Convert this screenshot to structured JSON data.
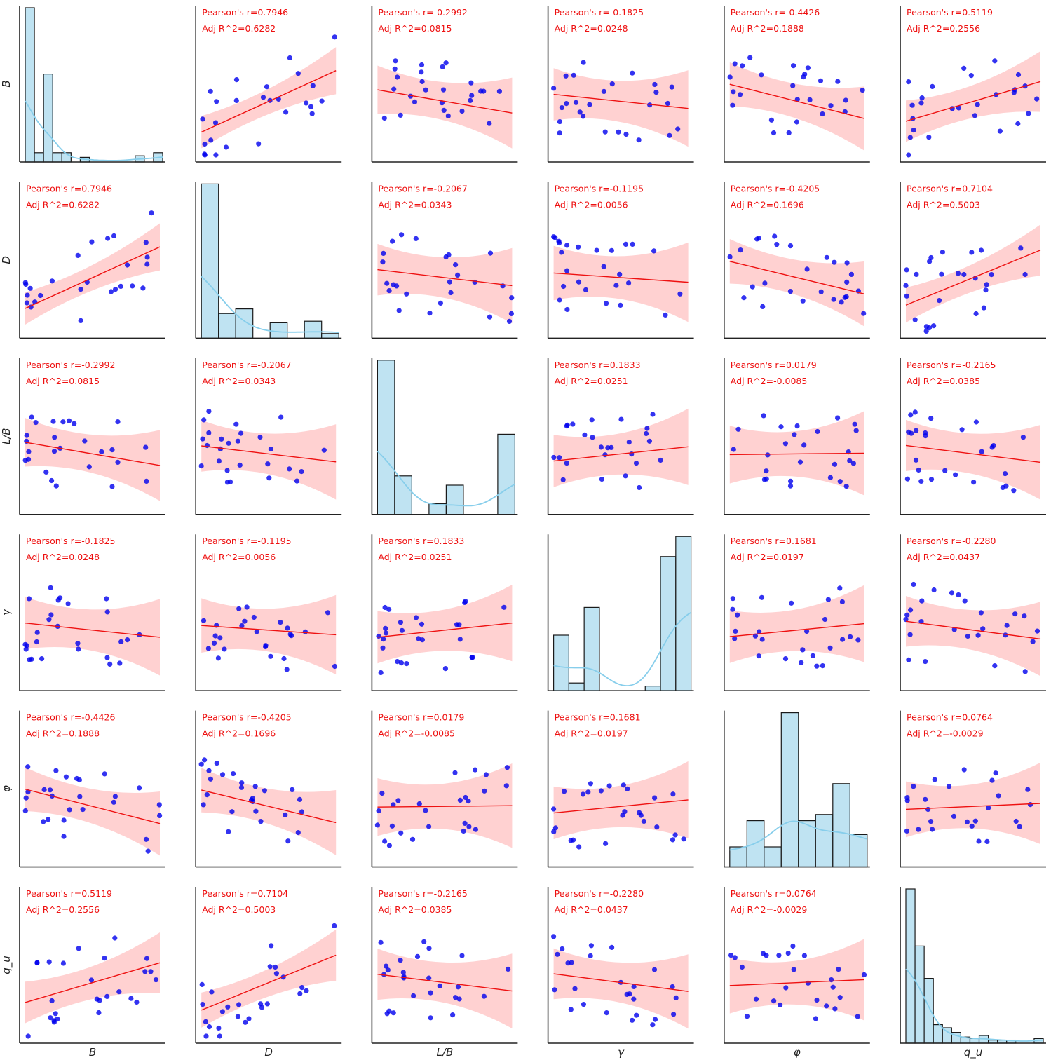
{
  "chart_data": {
    "type": "pairplot",
    "variables": [
      "B",
      "D",
      "L/B",
      "γ",
      "φ",
      "qu"
    ],
    "variable_labels": [
      "B",
      "D",
      "L/B",
      "γ",
      "φ",
      "q_u"
    ],
    "colors": {
      "scatter": "#0000ee",
      "fit_line": "#ee1111",
      "confidence_band": "#ffb3b3",
      "histogram_fill": "#bfe3f2",
      "histogram_edge": "#1a1a1a",
      "kde": "#87ceeb",
      "annotation": "#ee1111"
    },
    "pearson_label": "Pearson's r=",
    "adj_r2_label": "Adj R^2=",
    "pairs": [
      {
        "row": 0,
        "col": 1,
        "r": "0.7946",
        "adj_r2": "0.6282"
      },
      {
        "row": 0,
        "col": 2,
        "r": "-0.2992",
        "adj_r2": "0.0815"
      },
      {
        "row": 0,
        "col": 3,
        "r": "-0.1825",
        "adj_r2": "0.0248"
      },
      {
        "row": 0,
        "col": 4,
        "r": "-0.4426",
        "adj_r2": "0.1888"
      },
      {
        "row": 0,
        "col": 5,
        "r": "0.5119",
        "adj_r2": "0.2556"
      },
      {
        "row": 1,
        "col": 0,
        "r": "0.7946",
        "adj_r2": "0.6282"
      },
      {
        "row": 1,
        "col": 2,
        "r": "-0.2067",
        "adj_r2": "0.0343"
      },
      {
        "row": 1,
        "col": 3,
        "r": "-0.1195",
        "adj_r2": "0.0056"
      },
      {
        "row": 1,
        "col": 4,
        "r": "-0.4205",
        "adj_r2": "0.1696"
      },
      {
        "row": 1,
        "col": 5,
        "r": "0.7104",
        "adj_r2": "0.5003"
      },
      {
        "row": 2,
        "col": 0,
        "r": "-0.2992",
        "adj_r2": "0.0815"
      },
      {
        "row": 2,
        "col": 1,
        "r": "-0.2067",
        "adj_r2": "0.0343"
      },
      {
        "row": 2,
        "col": 3,
        "r": "0.1833",
        "adj_r2": "0.0251"
      },
      {
        "row": 2,
        "col": 4,
        "r": "0.0179",
        "adj_r2": "-0.0085"
      },
      {
        "row": 2,
        "col": 5,
        "r": "-0.2165",
        "adj_r2": "0.0385"
      },
      {
        "row": 3,
        "col": 0,
        "r": "-0.1825",
        "adj_r2": "0.0248"
      },
      {
        "row": 3,
        "col": 1,
        "r": "-0.1195",
        "adj_r2": "0.0056"
      },
      {
        "row": 3,
        "col": 2,
        "r": "0.1833",
        "adj_r2": "0.0251"
      },
      {
        "row": 3,
        "col": 4,
        "r": "0.1681",
        "adj_r2": "0.0197"
      },
      {
        "row": 3,
        "col": 5,
        "r": "-0.2280",
        "adj_r2": "0.0437"
      },
      {
        "row": 4,
        "col": 0,
        "r": "-0.4426",
        "adj_r2": "0.1888"
      },
      {
        "row": 4,
        "col": 1,
        "r": "-0.4205",
        "adj_r2": "0.1696"
      },
      {
        "row": 4,
        "col": 2,
        "r": "0.0179",
        "adj_r2": "-0.0085"
      },
      {
        "row": 4,
        "col": 3,
        "r": "0.1681",
        "adj_r2": "0.0197"
      },
      {
        "row": 4,
        "col": 5,
        "r": "0.0764",
        "adj_r2": "-0.0029"
      },
      {
        "row": 5,
        "col": 0,
        "r": "0.5119",
        "adj_r2": "0.2556"
      },
      {
        "row": 5,
        "col": 1,
        "r": "0.7104",
        "adj_r2": "0.5003"
      },
      {
        "row": 5,
        "col": 2,
        "r": "-0.2165",
        "adj_r2": "0.0385"
      },
      {
        "row": 5,
        "col": 3,
        "r": "-0.2280",
        "adj_r2": "0.0437"
      },
      {
        "row": 5,
        "col": 4,
        "r": "0.0764",
        "adj_r2": "-0.0029"
      }
    ],
    "histograms": [
      {
        "variable": "B",
        "counts": [
          100,
          6,
          57,
          6,
          6,
          0,
          3,
          0,
          0,
          0,
          0,
          0,
          4,
          0,
          6
        ]
      },
      {
        "variable": "D",
        "counts": [
          100,
          16,
          19,
          0,
          10,
          0,
          11,
          3
        ]
      },
      {
        "variable": "L/B",
        "counts": [
          100,
          25,
          0,
          7,
          19,
          0,
          0,
          52
        ]
      },
      {
        "variable": "γ",
        "counts": [
          36,
          5,
          54,
          0,
          0,
          0,
          3,
          87,
          100
        ]
      },
      {
        "variable": "φ",
        "counts": [
          13,
          30,
          13,
          100,
          30,
          34,
          54,
          21
        ]
      },
      {
        "variable": "qu",
        "counts": [
          100,
          63,
          42,
          12,
          10,
          7,
          4,
          3,
          5,
          2,
          2,
          2,
          0,
          0,
          3
        ]
      }
    ]
  }
}
